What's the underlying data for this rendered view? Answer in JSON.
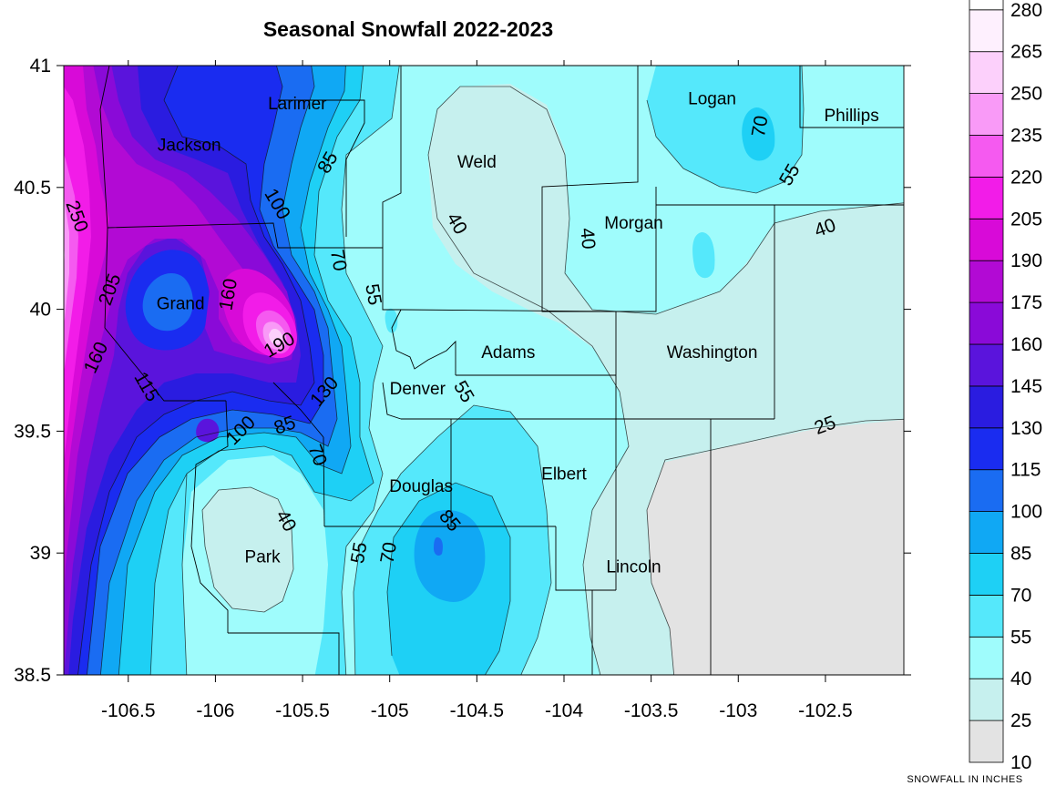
{
  "chart_data": {
    "type": "contour",
    "title": "Seasonal Snowfall 2022-2023",
    "units_label": "SNOWFALL IN INCHES",
    "xlim": [
      -106.87,
      -102.05
    ],
    "ylim": [
      38.5,
      41.0
    ],
    "x_ticks": [
      {
        "value": -106.5,
        "label": "-106.5"
      },
      {
        "value": -106.0,
        "label": "-106"
      },
      {
        "value": -105.5,
        "label": "-105.5"
      },
      {
        "value": -105.0,
        "label": "-105"
      },
      {
        "value": -104.5,
        "label": "-104.5"
      },
      {
        "value": -104.0,
        "label": "-104"
      },
      {
        "value": -103.5,
        "label": "-103.5"
      },
      {
        "value": -103.0,
        "label": "-103"
      },
      {
        "value": -102.5,
        "label": "-102.5"
      }
    ],
    "y_ticks": [
      {
        "value": 41.0,
        "label": "41"
      },
      {
        "value": 40.5,
        "label": "40.5"
      },
      {
        "value": 40.0,
        "label": "40"
      },
      {
        "value": 39.5,
        "label": "39.5"
      },
      {
        "value": 39.0,
        "label": "39"
      },
      {
        "value": 38.5,
        "label": "38.5"
      }
    ],
    "legend_levels": [
      {
        "value": 10,
        "label": "10",
        "color": "#e3e3e3"
      },
      {
        "value": 25,
        "label": "25",
        "color": "#c6f0ee"
      },
      {
        "value": 40,
        "label": "40",
        "color": "#9ffcfc"
      },
      {
        "value": 55,
        "label": "55",
        "color": "#55e8fb"
      },
      {
        "value": 70,
        "label": "70",
        "color": "#1ed0f5"
      },
      {
        "value": 85,
        "label": "85",
        "color": "#10a8f4"
      },
      {
        "value": 100,
        "label": "100",
        "color": "#1a6cf2"
      },
      {
        "value": 115,
        "label": "115",
        "color": "#1a2cf0"
      },
      {
        "value": 130,
        "label": "130",
        "color": "#2a1ce0"
      },
      {
        "value": 145,
        "label": "145",
        "color": "#5a14dc"
      },
      {
        "value": 160,
        "label": "160",
        "color": "#8a0ad8"
      },
      {
        "value": 175,
        "label": "175",
        "color": "#b20ad4"
      },
      {
        "value": 190,
        "label": "190",
        "color": "#d80ad8"
      },
      {
        "value": 205,
        "label": "205",
        "color": "#f21ce8"
      },
      {
        "value": 220,
        "label": "220",
        "color": "#f55af0"
      },
      {
        "value": 235,
        "label": "235",
        "color": "#f99af7"
      },
      {
        "value": 250,
        "label": "250",
        "color": "#fcd0fb"
      },
      {
        "value": 265,
        "label": "265",
        "color": "#fef0fe"
      },
      {
        "value": 280,
        "label": "280",
        "color": "#ffffff"
      }
    ],
    "counties": [
      {
        "name": "Larimer",
        "lon": -105.53,
        "lat": 40.84
      },
      {
        "name": "Jackson",
        "lon": -106.15,
        "lat": 40.67
      },
      {
        "name": "Weld",
        "lon": -104.5,
        "lat": 40.6
      },
      {
        "name": "Logan",
        "lon": -103.15,
        "lat": 40.86
      },
      {
        "name": "Phillips",
        "lon": -102.35,
        "lat": 40.79
      },
      {
        "name": "Morgan",
        "lon": -103.6,
        "lat": 40.35
      },
      {
        "name": "Grand",
        "lon": -106.2,
        "lat": 40.02
      },
      {
        "name": "Adams",
        "lon": -104.32,
        "lat": 39.82
      },
      {
        "name": "Washington",
        "lon": -103.15,
        "lat": 39.82
      },
      {
        "name": "Denver",
        "lon": -104.84,
        "lat": 39.67
      },
      {
        "name": "Elbert",
        "lon": -104.0,
        "lat": 39.32
      },
      {
        "name": "Douglas",
        "lon": -104.82,
        "lat": 39.27
      },
      {
        "name": "Park",
        "lon": -105.73,
        "lat": 38.98
      },
      {
        "name": "Lincoln",
        "lon": -103.6,
        "lat": 38.94
      }
    ],
    "contour_labels": [
      {
        "text": "250",
        "lon": -106.8,
        "lat": 40.38,
        "angle": 70
      },
      {
        "text": "205",
        "lon": -106.6,
        "lat": 40.08,
        "angle": -70
      },
      {
        "text": "160",
        "lon": -106.68,
        "lat": 39.8,
        "angle": -65
      },
      {
        "text": "115",
        "lon": -106.4,
        "lat": 39.68,
        "angle": 60
      },
      {
        "text": "160",
        "lon": -105.92,
        "lat": 40.06,
        "angle": -80
      },
      {
        "text": "190",
        "lon": -105.63,
        "lat": 39.85,
        "angle": -30
      },
      {
        "text": "130",
        "lon": -105.37,
        "lat": 39.66,
        "angle": -50
      },
      {
        "text": "100",
        "lon": -105.65,
        "lat": 40.43,
        "angle": 60
      },
      {
        "text": "85",
        "lon": -105.35,
        "lat": 40.6,
        "angle": -60
      },
      {
        "text": "70",
        "lon": -105.3,
        "lat": 40.2,
        "angle": 80
      },
      {
        "text": "55",
        "lon": -105.1,
        "lat": 40.06,
        "angle": 80
      },
      {
        "text": "100",
        "lon": -105.85,
        "lat": 39.5,
        "angle": -45
      },
      {
        "text": "85",
        "lon": -105.6,
        "lat": 39.52,
        "angle": -20
      },
      {
        "text": "70",
        "lon": -105.42,
        "lat": 39.4,
        "angle": 70
      },
      {
        "text": "40",
        "lon": -105.6,
        "lat": 39.13,
        "angle": 60
      },
      {
        "text": "55",
        "lon": -105.17,
        "lat": 39.0,
        "angle": -80
      },
      {
        "text": "70",
        "lon": -105.0,
        "lat": 39.0,
        "angle": -80
      },
      {
        "text": "85",
        "lon": -104.66,
        "lat": 39.13,
        "angle": 50
      },
      {
        "text": "55",
        "lon": -104.58,
        "lat": 39.66,
        "angle": 60
      },
      {
        "text": "40",
        "lon": -104.62,
        "lat": 40.35,
        "angle": 60
      },
      {
        "text": "40",
        "lon": -103.87,
        "lat": 40.29,
        "angle": 85
      },
      {
        "text": "70",
        "lon": -102.87,
        "lat": 40.75,
        "angle": -80
      },
      {
        "text": "55",
        "lon": -102.7,
        "lat": 40.55,
        "angle": -60
      },
      {
        "text": "40",
        "lon": -102.5,
        "lat": 40.33,
        "angle": -20
      },
      {
        "text": "25",
        "lon": -102.5,
        "lat": 39.52,
        "angle": -20
      }
    ]
  }
}
